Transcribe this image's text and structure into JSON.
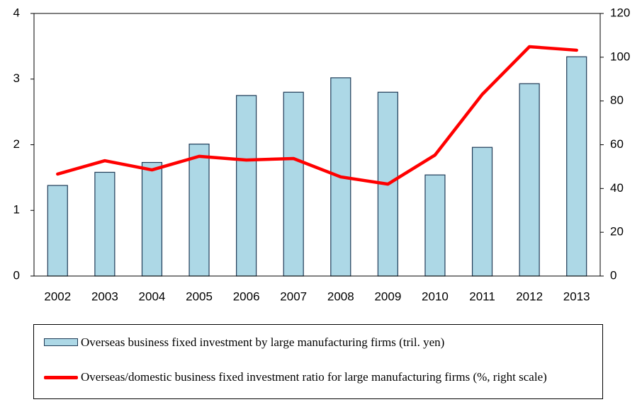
{
  "chart_data": {
    "type": "bar_line",
    "categories": [
      "2002",
      "2003",
      "2004",
      "2005",
      "2006",
      "2007",
      "2008",
      "2009",
      "2010",
      "2011",
      "2012",
      "2013"
    ],
    "series": [
      {
        "name": "Overseas business fixed investment by large manufacturing firms (tril. yen)",
        "type": "bar",
        "color": "#add8e6",
        "axis": "y",
        "values": [
          1.38,
          1.58,
          1.73,
          2.01,
          2.75,
          2.8,
          3.02,
          2.8,
          1.54,
          1.96,
          2.93,
          3.34
        ]
      },
      {
        "name": "Overseas/domestic business fixed investment ratio for large manufacturing firms (%, right scale)",
        "type": "line",
        "color": "#ff0000",
        "axis": "y2",
        "values": [
          46.6,
          52.7,
          48.5,
          54.7,
          53,
          53.7,
          45.3,
          42,
          55.3,
          83,
          104.8,
          103.2
        ]
      }
    ],
    "ylim": [
      0,
      4
    ],
    "yticks": [
      0,
      1,
      2,
      3,
      4
    ],
    "y2lim": [
      0,
      120
    ],
    "y2ticks": [
      0,
      20,
      40,
      60,
      80,
      100,
      120
    ],
    "grid": false,
    "legend": "bottom"
  }
}
